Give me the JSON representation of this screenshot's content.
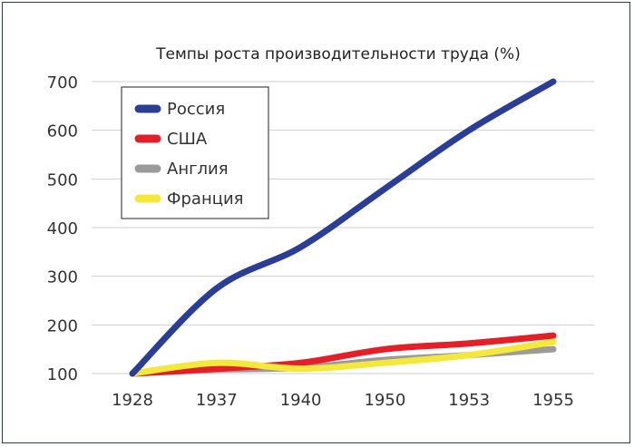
{
  "chart_data": {
    "type": "line",
    "title": "Темпы роста производительности труда (%)",
    "xlabel": "",
    "ylabel": "",
    "categories": [
      "1928",
      "1937",
      "1940",
      "1950",
      "1953",
      "1955"
    ],
    "ylim": [
      100,
      700
    ],
    "yticks": [
      100,
      200,
      300,
      400,
      500,
      600,
      700
    ],
    "grid": "horizontal",
    "legend_position": "top-left",
    "series": [
      {
        "name": "Россия",
        "color": "#2b3e96",
        "values": [
          100,
          275,
          360,
          480,
          600,
          700
        ]
      },
      {
        "name": "США",
        "color": "#e32028",
        "values": [
          100,
          110,
          122,
          150,
          162,
          178
        ]
      },
      {
        "name": "Англия",
        "color": "#9b9b9b",
        "values": [
          100,
          108,
          112,
          128,
          138,
          150
        ]
      },
      {
        "name": "Франция",
        "color": "#f4e93a",
        "values": [
          100,
          122,
          110,
          122,
          138,
          165
        ]
      }
    ]
  }
}
